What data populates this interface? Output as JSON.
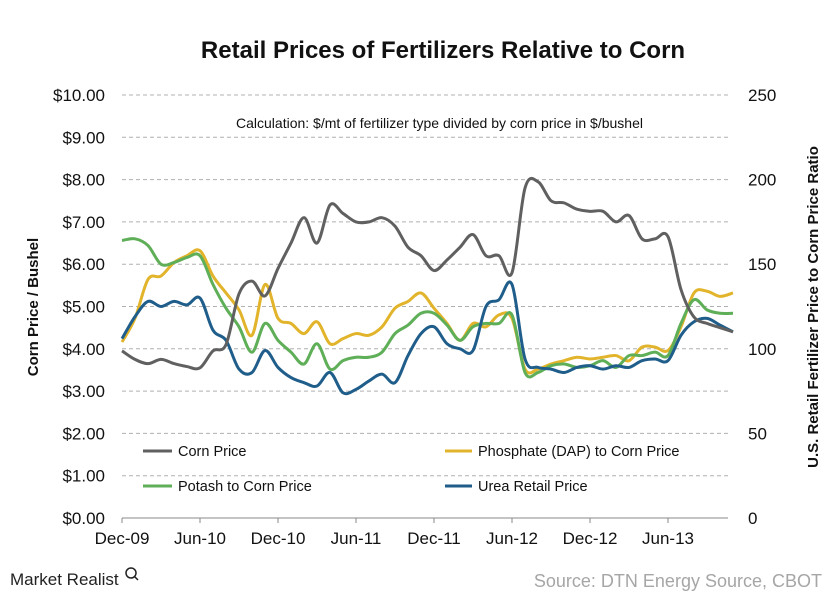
{
  "chart_data": {
    "type": "line",
    "title": "Retail Prices of Fertilizers Relative to Corn",
    "annotation": "Calculation: $/mt of fertilizer type divided by corn price in $/bushel",
    "ylabel_left": "Corn Price / Bushel",
    "ylabel_right": "U.S. Retail Fertilizer Price  to Corn Price Ratio",
    "ylim_left": [
      0,
      10
    ],
    "ylim_right": [
      0,
      250
    ],
    "left_tick_labels": [
      "$0.00",
      "$1.00",
      "$2.00",
      "$3.00",
      "$4.00",
      "$5.00",
      "$6.00",
      "$7.00",
      "$8.00",
      "$9.00",
      "$10.00"
    ],
    "right_tick_labels": [
      "0",
      "50",
      "100",
      "150",
      "200",
      "250"
    ],
    "x_tick_labels": [
      "Dec-09",
      "Jun-10",
      "Dec-10",
      "Jun-11",
      "Dec-11",
      "Jun-12",
      "Dec-12",
      "Jun-13"
    ],
    "x_start": "Dec-09",
    "x_end": "Nov-13",
    "x_frequency": "monthly",
    "grid": "horizontal dashed",
    "legend_placement": "bottom inside",
    "series": [
      {
        "name": "Corn Price",
        "axis": "left",
        "color": "#606060",
        "values": [
          3.95,
          3.75,
          3.65,
          3.75,
          3.65,
          3.58,
          3.55,
          3.95,
          4.1,
          5.3,
          5.6,
          5.25,
          5.9,
          6.5,
          7.1,
          6.5,
          7.4,
          7.2,
          7.0,
          7.0,
          7.1,
          6.9,
          6.4,
          6.2,
          5.85,
          6.1,
          6.4,
          6.7,
          6.2,
          6.2,
          5.8,
          7.8,
          7.95,
          7.5,
          7.45,
          7.3,
          7.25,
          7.25,
          7.0,
          7.15,
          6.6,
          6.6,
          6.65,
          5.4,
          4.75,
          4.6,
          4.5,
          4.4
        ]
      },
      {
        "name": "Phosphate (DAP) to Corn Price",
        "axis": "right",
        "color": "#e2b42b",
        "values": [
          104,
          118,
          141,
          143,
          151,
          155,
          158,
          143,
          133,
          123,
          108,
          138,
          118,
          115,
          109,
          116,
          103,
          106,
          109,
          108,
          113,
          124,
          128,
          133,
          124,
          115,
          105,
          115,
          113,
          120,
          118,
          88,
          88,
          91,
          93,
          95,
          94,
          95,
          96,
          93,
          101,
          101,
          99,
          113,
          133,
          134,
          131,
          133
        ]
      },
      {
        "name": "Potash to Corn Price",
        "axis": "right",
        "color": "#5fae58",
        "values": [
          164,
          165,
          161,
          150,
          151,
          154,
          155,
          138,
          124,
          113,
          98,
          115,
          105,
          98,
          91,
          103,
          88,
          93,
          95,
          95,
          98,
          109,
          114,
          121,
          121,
          114,
          105,
          113,
          115,
          115,
          120,
          86,
          86,
          90,
          91,
          89,
          90,
          93,
          89,
          96,
          96,
          98,
          96,
          115,
          129,
          123,
          121,
          121
        ]
      },
      {
        "name": "Urea Retail Price",
        "axis": "right",
        "color": "#1f5d8a",
        "values": [
          106,
          119,
          128,
          125,
          128,
          126,
          130,
          111,
          105,
          88,
          86,
          99,
          89,
          83,
          80,
          78,
          86,
          74,
          76,
          81,
          85,
          80,
          96,
          109,
          113,
          103,
          100,
          99,
          125,
          129,
          138,
          94,
          89,
          88,
          86,
          89,
          90,
          88,
          90,
          89,
          93,
          94,
          93,
          108,
          116,
          118,
          114,
          110
        ]
      }
    ]
  },
  "footer": {
    "logo": "Market Realist",
    "source": "Source: DTN Energy Source, CBOT"
  }
}
